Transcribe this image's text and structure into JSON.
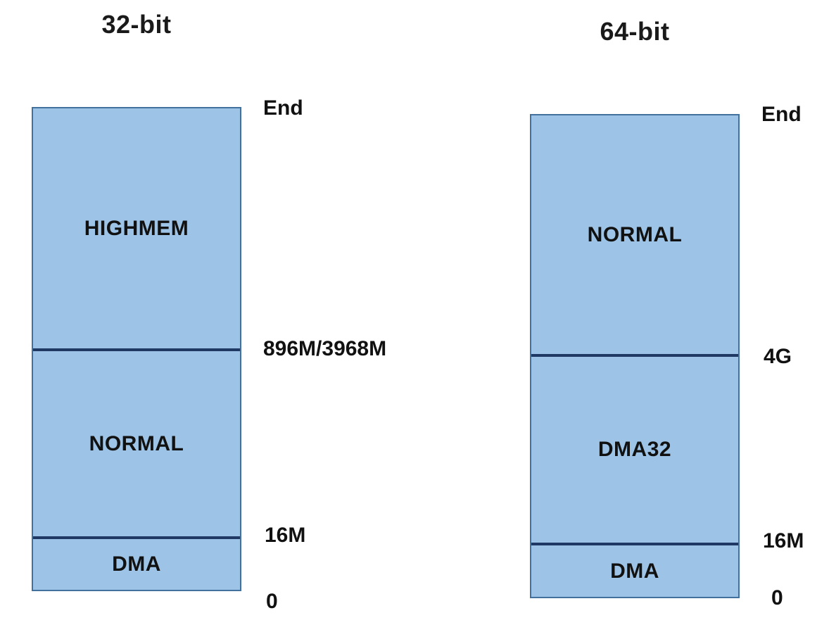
{
  "diagram": {
    "description": "Linux kernel memory zones comparison",
    "colors": {
      "zone_fill": "#9dc3e6",
      "zone_border": "#41719c",
      "boundary_line": "#1f3864",
      "text": "#111111",
      "background": "#ffffff"
    },
    "columns": [
      {
        "title": "32-bit",
        "zones": [
          {
            "label": "HIGHMEM"
          },
          {
            "label": "NORMAL"
          },
          {
            "label": "DMA"
          }
        ],
        "markers": {
          "top": "End",
          "upper_boundary": "896M/3968M",
          "lower_boundary": "16M",
          "bottom": "0"
        }
      },
      {
        "title": "64-bit",
        "zones": [
          {
            "label": "NORMAL"
          },
          {
            "label": "DMA32"
          },
          {
            "label": "DMA"
          }
        ],
        "markers": {
          "top": "End",
          "upper_boundary": "4G",
          "lower_boundary": "16M",
          "bottom": "0"
        }
      }
    ]
  }
}
